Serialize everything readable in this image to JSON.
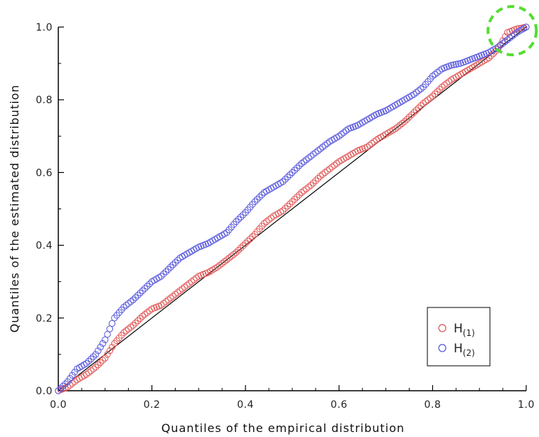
{
  "chart_data": {
    "type": "scatter",
    "xlabel": "Quantiles of the empirical distribution",
    "ylabel": "Quantiles of the estimated distribution",
    "xlim": [
      0,
      1
    ],
    "ylim": [
      0,
      1
    ],
    "x_ticks": [
      "0.0",
      "0.2",
      "0.4",
      "0.6",
      "0.8",
      "1.0"
    ],
    "y_ticks": [
      "0.0",
      "0.2",
      "0.4",
      "0.6",
      "0.8",
      "1.0"
    ],
    "grid": false,
    "legend_position": "bottom-right",
    "reference_line": {
      "from": [
        0,
        0
      ],
      "to": [
        1,
        1
      ],
      "color": "#000000"
    },
    "highlight": {
      "center": [
        0.97,
        0.99
      ],
      "color": "#55dd33",
      "style": "dashed circle"
    },
    "series": [
      {
        "name": "H",
        "subscript": "(1)",
        "color": "#e05555",
        "points": [
          [
            0.0,
            0.0
          ],
          [
            0.02,
            0.01
          ],
          [
            0.04,
            0.03
          ],
          [
            0.06,
            0.045
          ],
          [
            0.08,
            0.065
          ],
          [
            0.1,
            0.09
          ],
          [
            0.12,
            0.13
          ],
          [
            0.14,
            0.16
          ],
          [
            0.16,
            0.18
          ],
          [
            0.18,
            0.205
          ],
          [
            0.2,
            0.225
          ],
          [
            0.22,
            0.235
          ],
          [
            0.24,
            0.255
          ],
          [
            0.26,
            0.275
          ],
          [
            0.28,
            0.295
          ],
          [
            0.3,
            0.315
          ],
          [
            0.32,
            0.325
          ],
          [
            0.34,
            0.34
          ],
          [
            0.36,
            0.36
          ],
          [
            0.38,
            0.38
          ],
          [
            0.4,
            0.405
          ],
          [
            0.42,
            0.43
          ],
          [
            0.44,
            0.46
          ],
          [
            0.46,
            0.48
          ],
          [
            0.48,
            0.495
          ],
          [
            0.5,
            0.52
          ],
          [
            0.52,
            0.545
          ],
          [
            0.54,
            0.565
          ],
          [
            0.56,
            0.59
          ],
          [
            0.58,
            0.61
          ],
          [
            0.6,
            0.63
          ],
          [
            0.62,
            0.645
          ],
          [
            0.64,
            0.66
          ],
          [
            0.66,
            0.67
          ],
          [
            0.68,
            0.69
          ],
          [
            0.7,
            0.705
          ],
          [
            0.72,
            0.72
          ],
          [
            0.74,
            0.74
          ],
          [
            0.76,
            0.765
          ],
          [
            0.78,
            0.79
          ],
          [
            0.8,
            0.81
          ],
          [
            0.82,
            0.835
          ],
          [
            0.84,
            0.855
          ],
          [
            0.86,
            0.87
          ],
          [
            0.88,
            0.885
          ],
          [
            0.9,
            0.9
          ],
          [
            0.92,
            0.915
          ],
          [
            0.94,
            0.94
          ],
          [
            0.96,
            0.985
          ],
          [
            0.98,
            0.995
          ],
          [
            1.0,
            1.0
          ]
        ]
      },
      {
        "name": "H",
        "subscript": "(2)",
        "color": "#5555dd",
        "points": [
          [
            0.0,
            0.0
          ],
          [
            0.02,
            0.025
          ],
          [
            0.04,
            0.06
          ],
          [
            0.06,
            0.075
          ],
          [
            0.08,
            0.1
          ],
          [
            0.1,
            0.14
          ],
          [
            0.12,
            0.2
          ],
          [
            0.14,
            0.23
          ],
          [
            0.16,
            0.25
          ],
          [
            0.18,
            0.275
          ],
          [
            0.2,
            0.3
          ],
          [
            0.22,
            0.315
          ],
          [
            0.24,
            0.34
          ],
          [
            0.26,
            0.365
          ],
          [
            0.28,
            0.38
          ],
          [
            0.3,
            0.395
          ],
          [
            0.32,
            0.405
          ],
          [
            0.34,
            0.42
          ],
          [
            0.36,
            0.435
          ],
          [
            0.38,
            0.465
          ],
          [
            0.4,
            0.49
          ],
          [
            0.42,
            0.52
          ],
          [
            0.44,
            0.545
          ],
          [
            0.46,
            0.56
          ],
          [
            0.48,
            0.575
          ],
          [
            0.5,
            0.6
          ],
          [
            0.52,
            0.625
          ],
          [
            0.54,
            0.645
          ],
          [
            0.56,
            0.665
          ],
          [
            0.58,
            0.685
          ],
          [
            0.6,
            0.7
          ],
          [
            0.62,
            0.72
          ],
          [
            0.64,
            0.73
          ],
          [
            0.66,
            0.745
          ],
          [
            0.68,
            0.76
          ],
          [
            0.7,
            0.77
          ],
          [
            0.72,
            0.785
          ],
          [
            0.74,
            0.8
          ],
          [
            0.76,
            0.815
          ],
          [
            0.78,
            0.835
          ],
          [
            0.8,
            0.865
          ],
          [
            0.82,
            0.885
          ],
          [
            0.84,
            0.895
          ],
          [
            0.86,
            0.9
          ],
          [
            0.88,
            0.91
          ],
          [
            0.9,
            0.92
          ],
          [
            0.92,
            0.93
          ],
          [
            0.94,
            0.945
          ],
          [
            0.96,
            0.965
          ],
          [
            0.98,
            0.985
          ],
          [
            1.0,
            1.0
          ]
        ]
      }
    ]
  }
}
